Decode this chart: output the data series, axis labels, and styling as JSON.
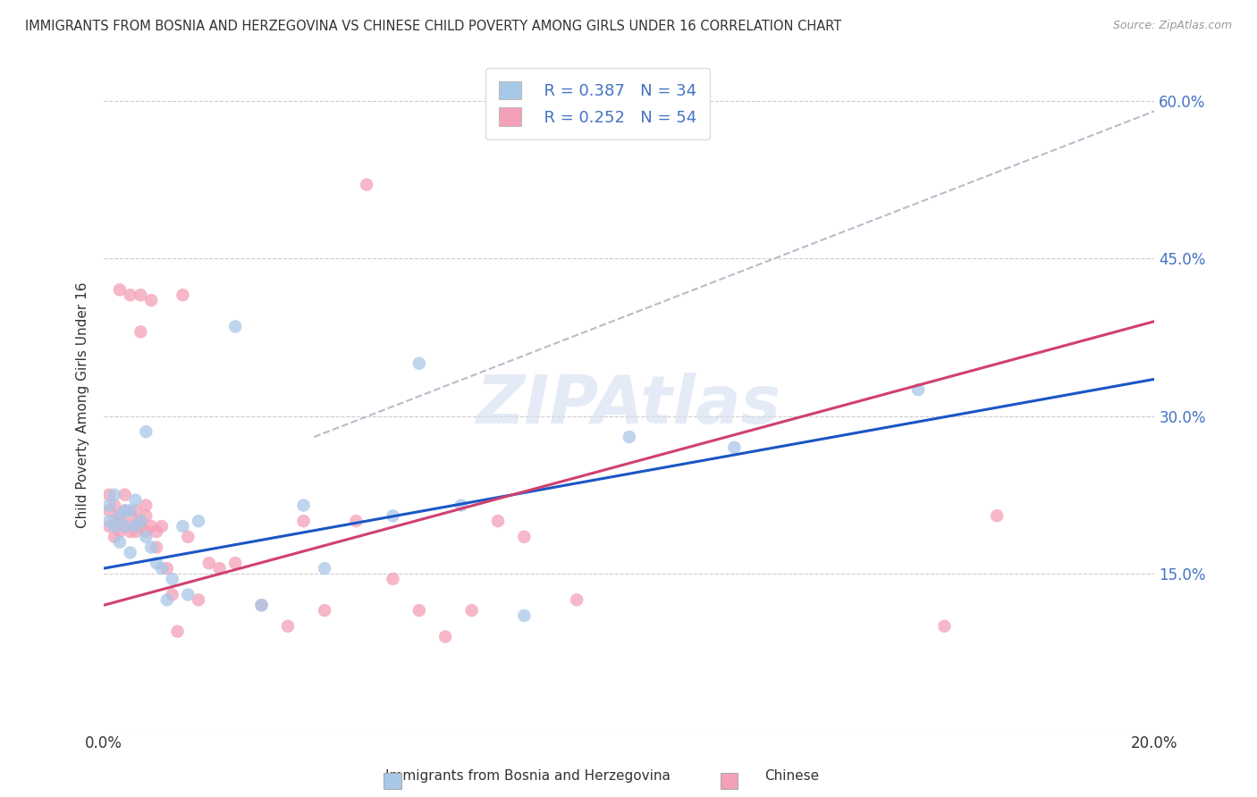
{
  "title": "IMMIGRANTS FROM BOSNIA AND HERZEGOVINA VS CHINESE CHILD POVERTY AMONG GIRLS UNDER 16 CORRELATION CHART",
  "source": "Source: ZipAtlas.com",
  "ylabel": "Child Poverty Among Girls Under 16",
  "xlabel_legend1": "Immigrants from Bosnia and Herzegovina",
  "xlabel_legend2": "Chinese",
  "legend1_R": "R = 0.387",
  "legend1_N": "N = 34",
  "legend2_R": "R = 0.252",
  "legend2_N": "N = 54",
  "blue_color": "#a8c8e8",
  "pink_color": "#f4a0b8",
  "line_blue": "#1a56c4",
  "line_pink": "#d04070",
  "line_dashed": "#c0b8c8",
  "xlim": [
    0.0,
    0.2
  ],
  "ylim": [
    0.0,
    0.62
  ],
  "blue_x": [
    0.001,
    0.001,
    0.002,
    0.002,
    0.003,
    0.003,
    0.004,
    0.004,
    0.005,
    0.005,
    0.006,
    0.006,
    0.007,
    0.008,
    0.008,
    0.009,
    0.01,
    0.011,
    0.012,
    0.013,
    0.015,
    0.016,
    0.018,
    0.025,
    0.03,
    0.038,
    0.042,
    0.055,
    0.06,
    0.068,
    0.08,
    0.1,
    0.12,
    0.155
  ],
  "blue_y": [
    0.2,
    0.215,
    0.195,
    0.225,
    0.18,
    0.205,
    0.21,
    0.195,
    0.17,
    0.21,
    0.195,
    0.22,
    0.2,
    0.185,
    0.285,
    0.175,
    0.16,
    0.155,
    0.125,
    0.145,
    0.195,
    0.13,
    0.2,
    0.385,
    0.12,
    0.215,
    0.155,
    0.205,
    0.35,
    0.215,
    0.11,
    0.28,
    0.27,
    0.325
  ],
  "pink_x": [
    0.001,
    0.001,
    0.001,
    0.002,
    0.002,
    0.002,
    0.003,
    0.003,
    0.003,
    0.004,
    0.004,
    0.004,
    0.005,
    0.005,
    0.005,
    0.006,
    0.006,
    0.006,
    0.007,
    0.007,
    0.007,
    0.007,
    0.008,
    0.008,
    0.008,
    0.009,
    0.009,
    0.01,
    0.01,
    0.011,
    0.012,
    0.013,
    0.014,
    0.015,
    0.016,
    0.018,
    0.02,
    0.022,
    0.025,
    0.03,
    0.035,
    0.038,
    0.042,
    0.048,
    0.05,
    0.055,
    0.06,
    0.065,
    0.07,
    0.075,
    0.08,
    0.09,
    0.16,
    0.17
  ],
  "pink_y": [
    0.195,
    0.21,
    0.225,
    0.185,
    0.2,
    0.215,
    0.19,
    0.205,
    0.42,
    0.195,
    0.21,
    0.225,
    0.19,
    0.205,
    0.415,
    0.195,
    0.21,
    0.19,
    0.195,
    0.415,
    0.2,
    0.38,
    0.205,
    0.19,
    0.215,
    0.195,
    0.41,
    0.175,
    0.19,
    0.195,
    0.155,
    0.13,
    0.095,
    0.415,
    0.185,
    0.125,
    0.16,
    0.155,
    0.16,
    0.12,
    0.1,
    0.2,
    0.115,
    0.2,
    0.52,
    0.145,
    0.115,
    0.09,
    0.115,
    0.2,
    0.185,
    0.125,
    0.1,
    0.205
  ]
}
